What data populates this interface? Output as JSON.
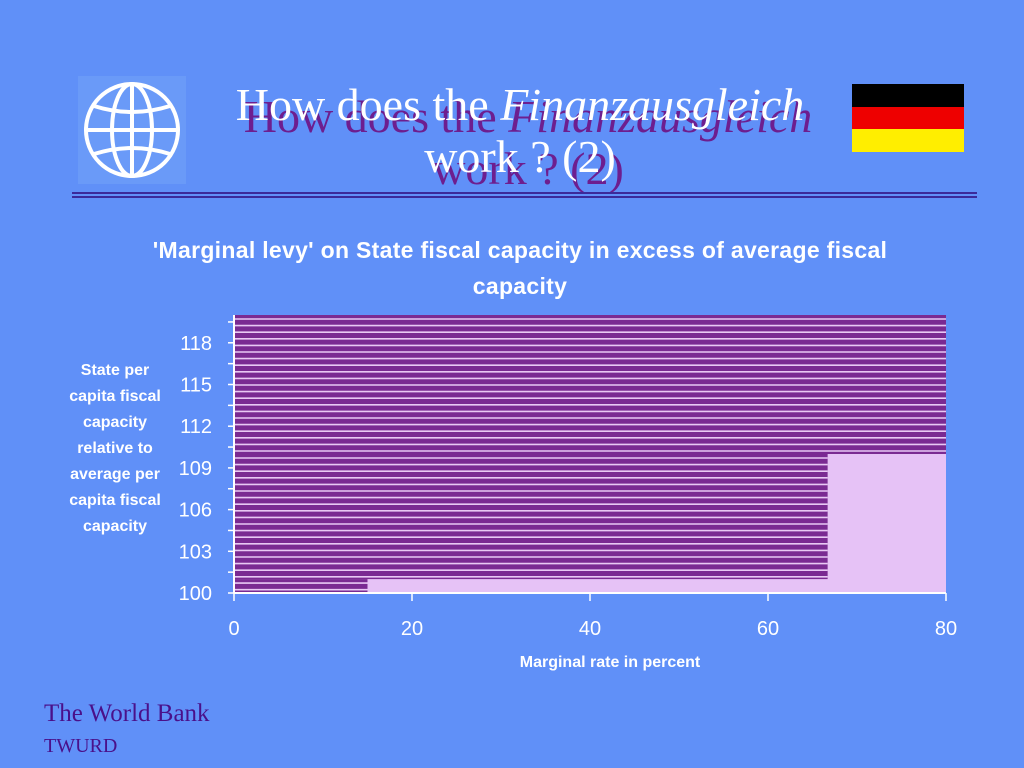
{
  "slide": {
    "title_line1_prefix": "How does the ",
    "title_line1_italic": "Finanzausgleich",
    "title_line2": "work ? (2)",
    "footer_org": "The World Bank",
    "footer_unit": "TWURD",
    "flag_colors": [
      "#000000",
      "#ee0000",
      "#ffee00"
    ]
  },
  "chart_data": {
    "type": "bar",
    "orientation": "horizontal",
    "title": "'Marginal levy' on State fiscal capacity in excess of average fiscal capacity",
    "xlabel": "Marginal rate in percent",
    "ylabel": "State per capita fiscal capacity relative to average per capita fiscal capacity",
    "xlim": [
      0,
      80
    ],
    "ylim": [
      100,
      120
    ],
    "xticks": [
      "0",
      "20",
      "40",
      "60",
      "80"
    ],
    "yticks": [
      "100",
      "103",
      "106",
      "109",
      "112",
      "115",
      "118"
    ],
    "segments": [
      {
        "from": 100,
        "to": 101,
        "value": 15
      },
      {
        "from": 101,
        "to": 110,
        "value": 66.7
      },
      {
        "from": 110,
        "to": 120,
        "value": 80
      }
    ],
    "colors": {
      "bar": "#7a2a92",
      "stripe": "#e8c8f4",
      "background": "#e6c2f6",
      "axis": "#ffffff"
    }
  }
}
